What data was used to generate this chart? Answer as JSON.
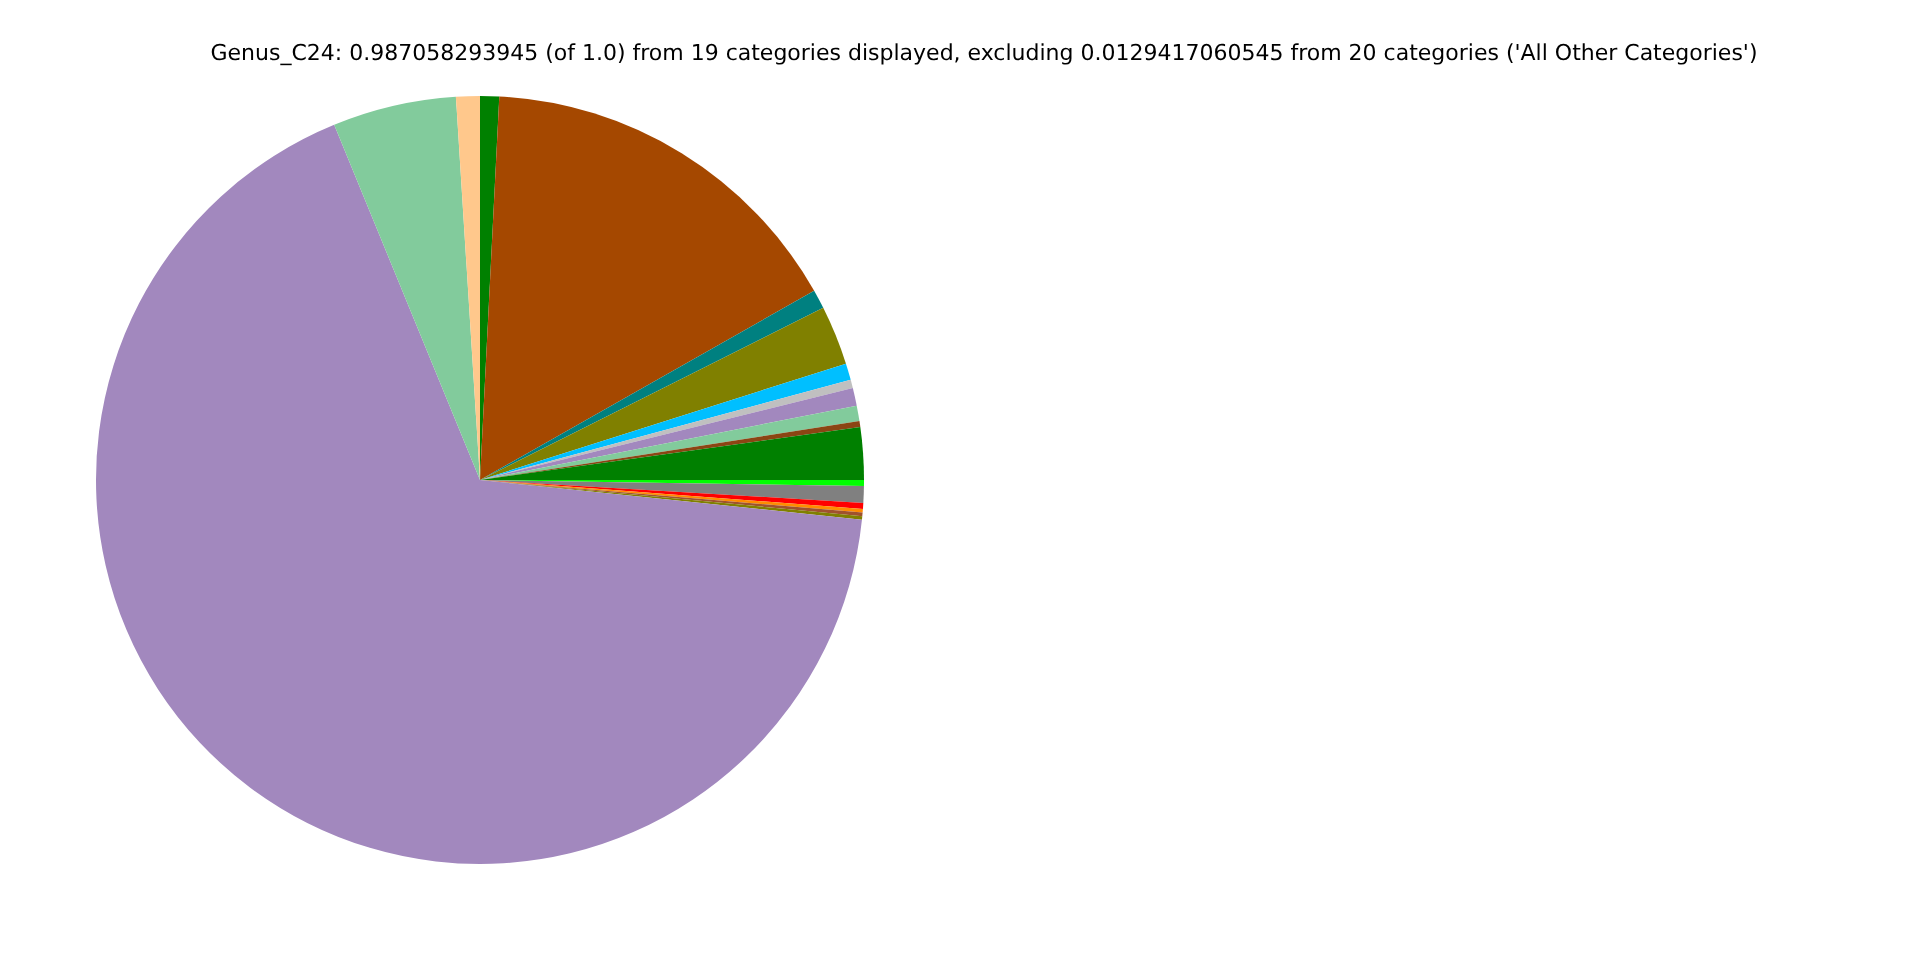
{
  "chart_data": {
    "type": "pie",
    "title": "Genus_C24: 0.987058293945 (of 1.0) from 19 categories displayed, excluding 0.0129417060545 from 20 categories ('All Other Categories')",
    "categories": [
      null,
      null,
      null,
      null,
      null,
      null,
      null,
      null,
      null,
      null,
      null,
      null,
      null,
      null,
      null,
      null,
      null,
      null,
      null
    ],
    "values": [
      0.8,
      16,
      0.8,
      2.5,
      0.7,
      0.35,
      0.75,
      0.65,
      0.25,
      2.2,
      0.25,
      0.7,
      0.25,
      0.15,
      0.15,
      0.15,
      67.15,
      5.2,
      1.0
    ],
    "colors": [
      "#008000",
      "#a54800",
      "#008080",
      "#808000",
      "#00bfff",
      "#c0c0c0",
      "#a288be",
      "#82cb9c",
      "#8b4513",
      "#008000",
      "#00ff00",
      "#808080",
      "#ff0000",
      "#ff8c00",
      "#a0522d",
      "#808000",
      "#a288be",
      "#82cb9c",
      "#ffc88c"
    ],
    "legend": false
  }
}
